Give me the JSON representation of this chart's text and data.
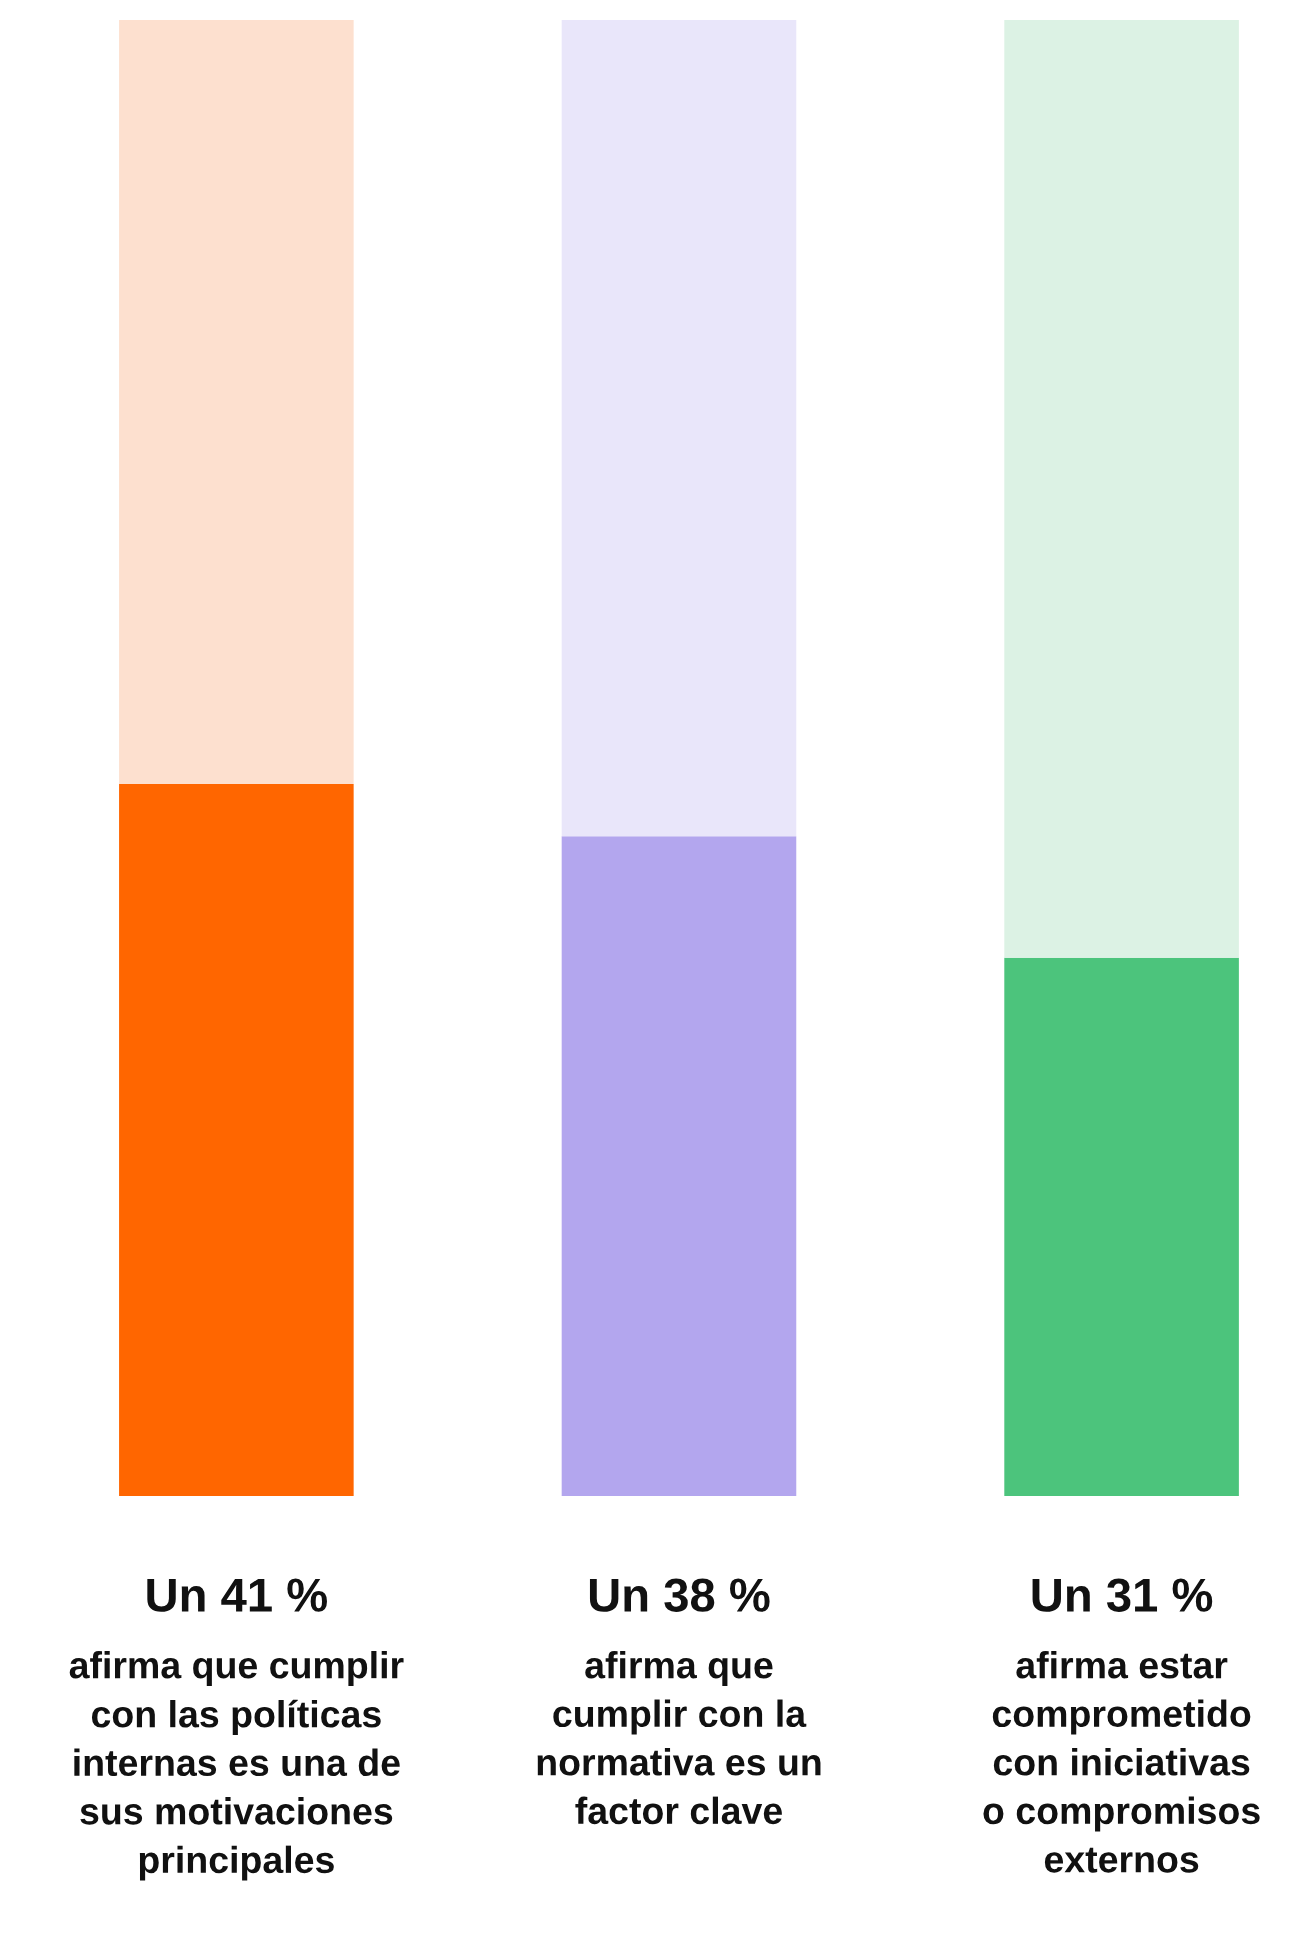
{
  "chart_data": {
    "type": "bar",
    "stacked": true,
    "categories": [
      "afirma que cumplir\ncon las políticas\ninternas es una de\nsus motivaciones\nprincipales",
      "afirma que\ncumplir con la\nnormativa es un\nfactor clave",
      "afirma estar\ncomprometido\ncon iniciativas\no compromisos\nexternos"
    ],
    "series": [
      {
        "colors": [
          "#ff6600",
          "#b3a6ee",
          "#4cc47c"
        ],
        "values": [
          41,
          38,
          31
        ],
        "value_labels": [
          "Un 41 %",
          "Un 38 %",
          "Un 31 %"
        ]
      },
      {
        "colors": [
          "#fde0cf",
          "#e9e6fa",
          "#dcf2e4"
        ],
        "values": [
          44,
          47,
          54
        ]
      }
    ],
    "ylim": [
      0,
      85
    ]
  }
}
